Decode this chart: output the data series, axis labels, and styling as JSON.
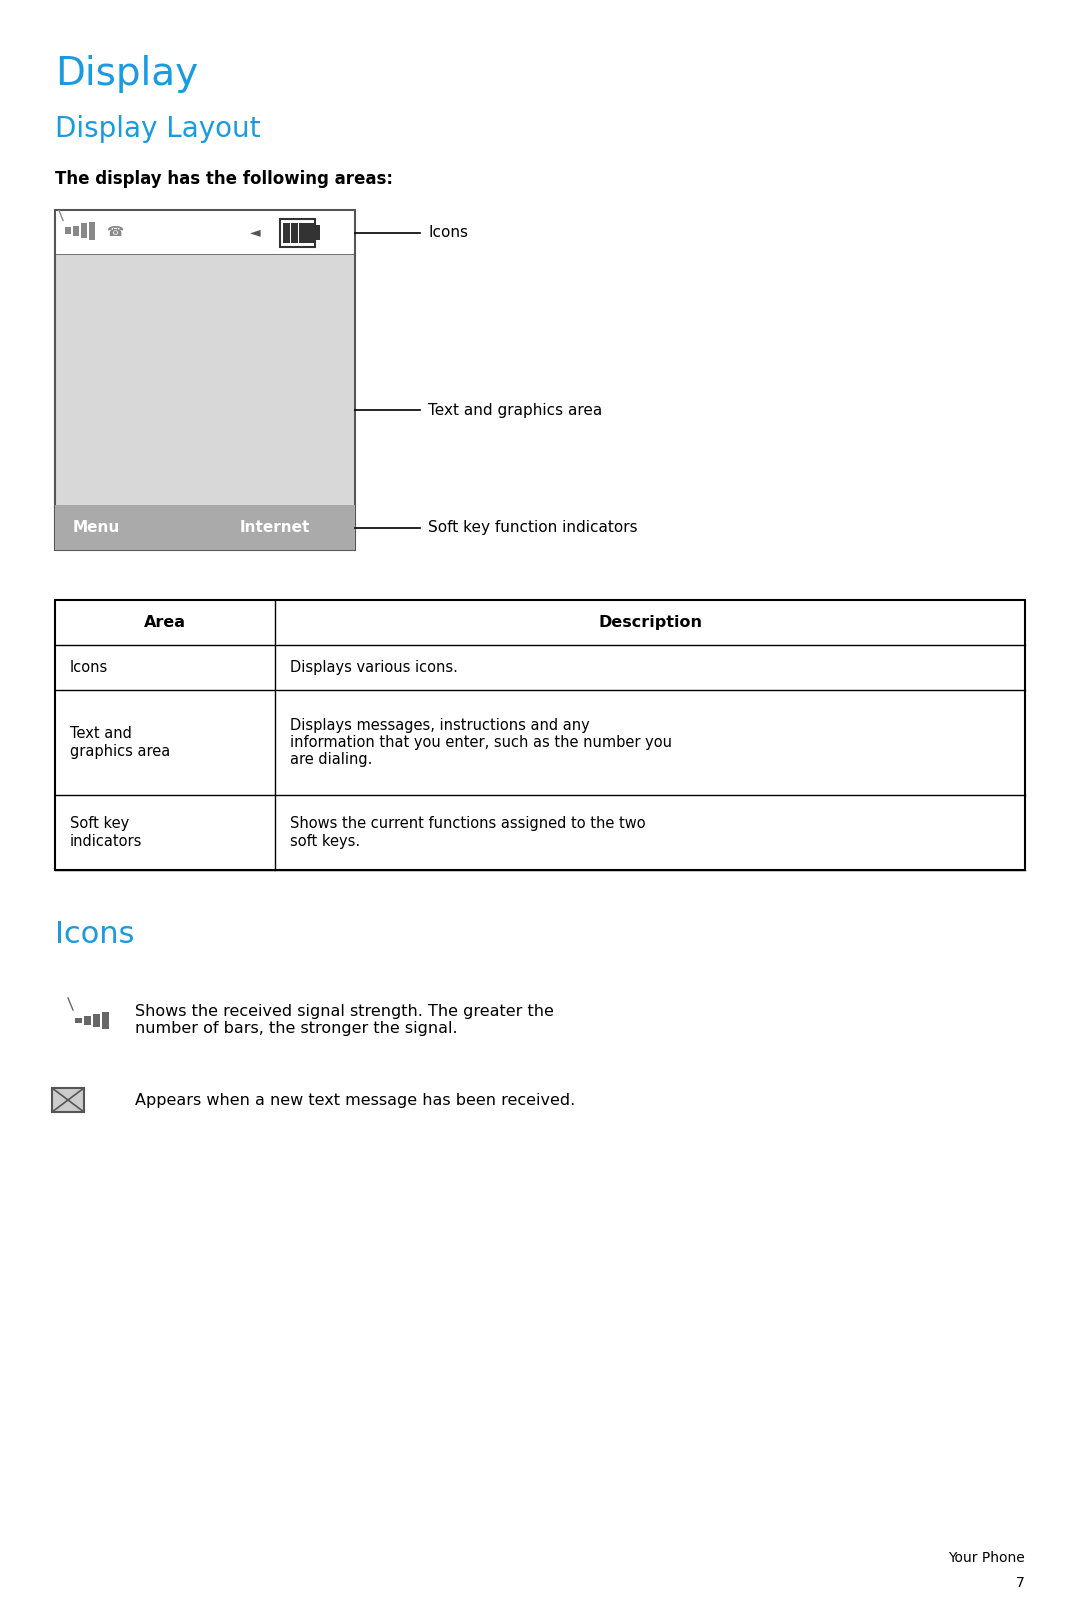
{
  "bg_color": "#ffffff",
  "title_display": "Display",
  "title_display_layout": "Display Layout",
  "title_icons": "Icons",
  "subtitle": "The display has the following areas:",
  "title_color": "#1a9ae0",
  "body_color": "#000000",
  "label_icons": "Icons",
  "label_text_graphics": "Text and graphics area",
  "label_softkey": "Soft key function indicators",
  "table_header_area": "Area",
  "table_header_desc": "Description",
  "table_rows": [
    {
      "area": "Icons",
      "desc": "Displays various icons."
    },
    {
      "area": "Text and\ngraphics area",
      "desc": "Displays messages, instructions and any\ninformation that you enter, such as the number you\nare dialing."
    },
    {
      "area": "Soft key\nindicators",
      "desc": "Shows the current functions assigned to the two\nsoft keys."
    }
  ],
  "icons_section": [
    {
      "desc": "Shows the received signal strength. The greater the\nnumber of bars, the stronger the signal."
    },
    {
      "desc": "Appears when a new text message has been received."
    }
  ],
  "footer_text": "Your Phone\n7"
}
